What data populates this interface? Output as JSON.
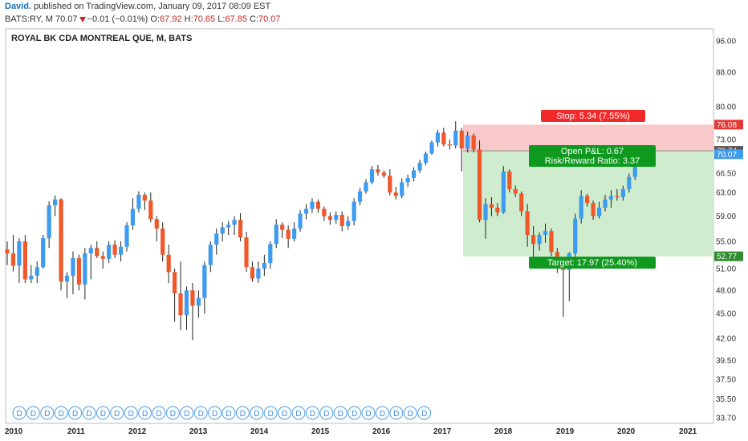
{
  "header": {
    "author": "David.",
    "published": "published on TradingView.com, January 09, 2017 08:09 EST",
    "symbol": "BATS:RY, M",
    "last": "70.07",
    "change": "−0.01 (−0.01%)",
    "open_label": "O:",
    "open": "67.92",
    "high_label": "H:",
    "high": "70.65",
    "low_label": "L:",
    "low": "67.85",
    "close_label": "C:",
    "close": "70.07"
  },
  "colors": {
    "up": "#3d9bf0",
    "down": "#f0572a",
    "stop_zone": "#f9c9c9",
    "target_zone": "#cfeccf",
    "stop_box": "#f02a2a",
    "target_box": "#0f9a1f",
    "last_price_tag": "#3d9bf0"
  },
  "chart_data": {
    "type": "candlestick",
    "title": "ROYAL BK CDA MONTREAL QUE, M, BATS",
    "yaxis_ticks": [
      96.0,
      88.0,
      80.0,
      73.0,
      70.74,
      66.5,
      63.0,
      59.0,
      55.0,
      51.0,
      48.0,
      45.0,
      42.0,
      39.5,
      37.5,
      35.5,
      33.7
    ],
    "yaxis_tick_labels": [
      "96.00",
      "88.00",
      "80.00",
      "73.00",
      "70.74",
      "66.50",
      "63.00",
      "59.00",
      "55.00",
      "51.00",
      "48.00",
      "45.00",
      "42.00",
      "39.50",
      "37.50",
      "35.50",
      "33.70"
    ],
    "xaxis_labels": [
      "2010",
      "2011",
      "2012",
      "2013",
      "2014",
      "2015",
      "2016",
      "2017",
      "2018",
      "2019",
      "2020",
      "2021"
    ],
    "ylim": [
      33.7,
      100
    ],
    "log_scale": true,
    "candles": [
      {
        "o": 53.8,
        "h": 55.0,
        "l": 51.5,
        "c": 53.2
      },
      {
        "o": 53.2,
        "h": 56.0,
        "l": 50.6,
        "c": 51.4
      },
      {
        "o": 51.4,
        "h": 55.5,
        "l": 49.0,
        "c": 55.0
      },
      {
        "o": 55.0,
        "h": 56.0,
        "l": 49.0,
        "c": 49.5
      },
      {
        "o": 49.5,
        "h": 51.5,
        "l": 49.0,
        "c": 50.0
      },
      {
        "o": 50.0,
        "h": 52.0,
        "l": 49.0,
        "c": 51.2
      },
      {
        "o": 51.2,
        "h": 56.0,
        "l": 51.0,
        "c": 55.5
      },
      {
        "o": 55.5,
        "h": 61.5,
        "l": 54.0,
        "c": 60.8
      },
      {
        "o": 60.8,
        "h": 62.5,
        "l": 59.0,
        "c": 61.8
      },
      {
        "o": 61.8,
        "h": 62.0,
        "l": 48.0,
        "c": 49.2
      },
      {
        "o": 49.2,
        "h": 50.5,
        "l": 47.0,
        "c": 50.0
      },
      {
        "o": 50.0,
        "h": 53.5,
        "l": 47.5,
        "c": 52.5
      },
      {
        "o": 52.5,
        "h": 53.0,
        "l": 48.0,
        "c": 48.8
      },
      {
        "o": 48.8,
        "h": 54.0,
        "l": 46.8,
        "c": 53.2
      },
      {
        "o": 53.2,
        "h": 54.5,
        "l": 49.5,
        "c": 54.0
      },
      {
        "o": 54.0,
        "h": 55.0,
        "l": 52.5,
        "c": 52.8
      },
      {
        "o": 52.8,
        "h": 53.5,
        "l": 51.0,
        "c": 52.4
      },
      {
        "o": 52.4,
        "h": 55.0,
        "l": 51.8,
        "c": 54.5
      },
      {
        "o": 54.5,
        "h": 55.2,
        "l": 52.5,
        "c": 53.0
      },
      {
        "o": 53.0,
        "h": 55.0,
        "l": 52.0,
        "c": 54.2
      },
      {
        "o": 54.2,
        "h": 58.0,
        "l": 53.5,
        "c": 57.5
      },
      {
        "o": 57.5,
        "h": 62.0,
        "l": 56.8,
        "c": 60.2
      },
      {
        "o": 60.2,
        "h": 63.2,
        "l": 59.6,
        "c": 62.6
      },
      {
        "o": 62.6,
        "h": 63.0,
        "l": 60.0,
        "c": 61.6
      },
      {
        "o": 61.6,
        "h": 63.0,
        "l": 58.0,
        "c": 58.5
      },
      {
        "o": 58.5,
        "h": 59.0,
        "l": 55.0,
        "c": 57.0
      },
      {
        "o": 57.0,
        "h": 58.0,
        "l": 52.0,
        "c": 53.0
      },
      {
        "o": 53.0,
        "h": 54.5,
        "l": 49.0,
        "c": 50.5
      },
      {
        "o": 50.5,
        "h": 51.0,
        "l": 44.0,
        "c": 47.6
      },
      {
        "o": 47.6,
        "h": 52.0,
        "l": 43.0,
        "c": 44.8
      },
      {
        "o": 44.8,
        "h": 48.5,
        "l": 43.0,
        "c": 48.0
      },
      {
        "o": 48.0,
        "h": 49.0,
        "l": 41.8,
        "c": 46.0
      },
      {
        "o": 46.0,
        "h": 48.0,
        "l": 44.5,
        "c": 47.0
      },
      {
        "o": 47.0,
        "h": 52.0,
        "l": 45.0,
        "c": 51.5
      },
      {
        "o": 51.5,
        "h": 55.0,
        "l": 50.5,
        "c": 54.5
      },
      {
        "o": 54.5,
        "h": 57.0,
        "l": 53.0,
        "c": 56.2
      },
      {
        "o": 56.2,
        "h": 58.0,
        "l": 55.0,
        "c": 57.2
      },
      {
        "o": 57.2,
        "h": 58.2,
        "l": 56.0,
        "c": 57.6
      },
      {
        "o": 57.6,
        "h": 59.0,
        "l": 56.0,
        "c": 58.4
      },
      {
        "o": 58.4,
        "h": 59.5,
        "l": 55.0,
        "c": 55.6
      },
      {
        "o": 55.6,
        "h": 56.5,
        "l": 50.5,
        "c": 51.2
      },
      {
        "o": 51.2,
        "h": 52.0,
        "l": 49.2,
        "c": 49.6
      },
      {
        "o": 49.6,
        "h": 52.0,
        "l": 49.0,
        "c": 51.0
      },
      {
        "o": 51.0,
        "h": 53.0,
        "l": 50.0,
        "c": 51.8
      },
      {
        "o": 51.8,
        "h": 55.0,
        "l": 51.0,
        "c": 54.6
      },
      {
        "o": 54.6,
        "h": 58.5,
        "l": 54.0,
        "c": 57.6
      },
      {
        "o": 57.6,
        "h": 58.0,
        "l": 55.5,
        "c": 56.8
      },
      {
        "o": 56.8,
        "h": 57.5,
        "l": 54.0,
        "c": 55.4
      },
      {
        "o": 55.4,
        "h": 58.0,
        "l": 55.0,
        "c": 57.0
      },
      {
        "o": 57.0,
        "h": 60.0,
        "l": 56.5,
        "c": 59.4
      },
      {
        "o": 59.4,
        "h": 61.0,
        "l": 58.5,
        "c": 60.2
      },
      {
        "o": 60.2,
        "h": 62.0,
        "l": 59.5,
        "c": 61.4
      },
      {
        "o": 61.4,
        "h": 61.8,
        "l": 59.5,
        "c": 60.2
      },
      {
        "o": 60.2,
        "h": 60.6,
        "l": 58.2,
        "c": 59.0
      },
      {
        "o": 59.0,
        "h": 59.6,
        "l": 57.6,
        "c": 58.4
      },
      {
        "o": 58.4,
        "h": 59.8,
        "l": 57.8,
        "c": 59.2
      },
      {
        "o": 59.2,
        "h": 59.8,
        "l": 56.6,
        "c": 57.4
      },
      {
        "o": 57.4,
        "h": 59.0,
        "l": 56.8,
        "c": 58.2
      },
      {
        "o": 58.2,
        "h": 62.0,
        "l": 57.5,
        "c": 61.4
      },
      {
        "o": 61.4,
        "h": 63.8,
        "l": 60.8,
        "c": 63.2
      },
      {
        "o": 63.2,
        "h": 65.4,
        "l": 62.8,
        "c": 64.8
      },
      {
        "o": 64.8,
        "h": 67.8,
        "l": 64.5,
        "c": 67.2
      },
      {
        "o": 67.2,
        "h": 68.0,
        "l": 66.0,
        "c": 66.6
      },
      {
        "o": 66.6,
        "h": 67.0,
        "l": 65.6,
        "c": 66.0
      },
      {
        "o": 66.0,
        "h": 67.2,
        "l": 62.5,
        "c": 63.0
      },
      {
        "o": 63.0,
        "h": 64.0,
        "l": 61.8,
        "c": 62.4
      },
      {
        "o": 62.4,
        "h": 65.5,
        "l": 62.0,
        "c": 64.8
      },
      {
        "o": 64.8,
        "h": 66.2,
        "l": 64.0,
        "c": 65.6
      },
      {
        "o": 65.6,
        "h": 67.6,
        "l": 65.0,
        "c": 67.0
      },
      {
        "o": 67.0,
        "h": 69.0,
        "l": 66.5,
        "c": 68.4
      },
      {
        "o": 68.4,
        "h": 70.6,
        "l": 68.0,
        "c": 70.2
      },
      {
        "o": 70.2,
        "h": 72.8,
        "l": 70.0,
        "c": 72.4
      },
      {
        "o": 72.4,
        "h": 75.0,
        "l": 71.6,
        "c": 74.4
      },
      {
        "o": 74.4,
        "h": 75.4,
        "l": 71.6,
        "c": 72.0
      },
      {
        "o": 72.0,
        "h": 73.0,
        "l": 71.0,
        "c": 71.8
      },
      {
        "o": 71.8,
        "h": 76.8,
        "l": 71.2,
        "c": 74.8
      },
      {
        "o": 74.8,
        "h": 75.4,
        "l": 66.8,
        "c": 71.2
      },
      {
        "o": 71.2,
        "h": 74.6,
        "l": 70.4,
        "c": 73.8
      },
      {
        "o": 73.8,
        "h": 74.2,
        "l": 70.4,
        "c": 71.0
      },
      {
        "o": 71.0,
        "h": 72.8,
        "l": 58.0,
        "c": 58.4
      },
      {
        "o": 58.4,
        "h": 62.0,
        "l": 55.4,
        "c": 61.0
      },
      {
        "o": 61.0,
        "h": 62.2,
        "l": 59.0,
        "c": 60.4
      },
      {
        "o": 60.4,
        "h": 61.2,
        "l": 59.0,
        "c": 59.6
      },
      {
        "o": 59.6,
        "h": 67.8,
        "l": 59.4,
        "c": 66.8
      },
      {
        "o": 66.8,
        "h": 67.2,
        "l": 63.0,
        "c": 63.6
      },
      {
        "o": 63.6,
        "h": 64.2,
        "l": 62.2,
        "c": 62.8
      },
      {
        "o": 62.8,
        "h": 63.2,
        "l": 59.0,
        "c": 59.8
      },
      {
        "o": 59.8,
        "h": 61.0,
        "l": 54.2,
        "c": 56.0
      },
      {
        "o": 56.0,
        "h": 57.4,
        "l": 52.2,
        "c": 54.6
      },
      {
        "o": 54.6,
        "h": 56.4,
        "l": 53.6,
        "c": 56.0
      },
      {
        "o": 56.0,
        "h": 57.8,
        "l": 54.8,
        "c": 56.6
      },
      {
        "o": 56.6,
        "h": 57.0,
        "l": 52.8,
        "c": 53.4
      },
      {
        "o": 53.4,
        "h": 54.0,
        "l": 50.4,
        "c": 51.2
      },
      {
        "o": 51.2,
        "h": 52.0,
        "l": 44.6,
        "c": 50.8
      },
      {
        "o": 50.8,
        "h": 53.4,
        "l": 46.6,
        "c": 53.2
      },
      {
        "o": 53.2,
        "h": 59.4,
        "l": 52.4,
        "c": 58.6
      },
      {
        "o": 58.6,
        "h": 63.4,
        "l": 57.8,
        "c": 62.4
      },
      {
        "o": 62.4,
        "h": 62.8,
        "l": 60.6,
        "c": 61.2
      },
      {
        "o": 61.2,
        "h": 61.6,
        "l": 58.4,
        "c": 59.0
      },
      {
        "o": 59.0,
        "h": 61.4,
        "l": 58.6,
        "c": 60.4
      },
      {
        "o": 60.4,
        "h": 62.6,
        "l": 59.8,
        "c": 61.8
      },
      {
        "o": 61.8,
        "h": 63.4,
        "l": 60.4,
        "c": 62.4
      },
      {
        "o": 62.4,
        "h": 63.6,
        "l": 61.6,
        "c": 62.2
      },
      {
        "o": 62.2,
        "h": 64.2,
        "l": 61.6,
        "c": 63.6
      },
      {
        "o": 63.6,
        "h": 66.4,
        "l": 63.0,
        "c": 65.8
      },
      {
        "o": 65.8,
        "h": 68.6,
        "l": 65.2,
        "c": 67.9
      },
      {
        "o": 67.92,
        "h": 70.65,
        "l": 67.85,
        "c": 70.07
      }
    ],
    "dividend_marks": 30,
    "dividend_label": "D",
    "position": {
      "entry": 70.74,
      "stop": 76.08,
      "target": 52.77,
      "last": 70.07,
      "stop_label": "Stop: 5.34 (7.55%)",
      "pnl_label": "Open P&L: 0.67",
      "rr_label": "Risk/Reward Ratio: 3.37",
      "target_label": "Target: 17.97 (25.40%)",
      "stop_tag": "76.08",
      "entry_tag": "70.74",
      "last_tag": "70.07",
      "target_tag": "52.77"
    }
  }
}
